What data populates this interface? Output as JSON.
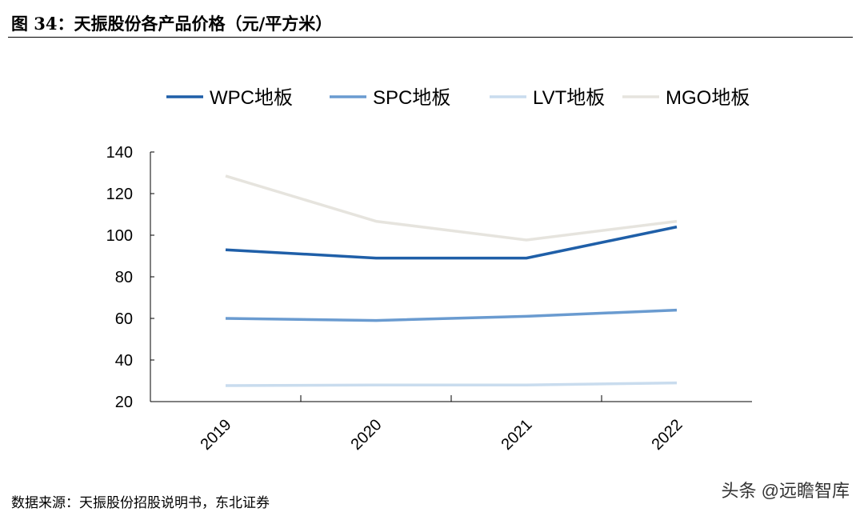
{
  "title": "图 34：天振股份各产品价格（元/平方米）",
  "source": "数据来源：天振股份招股说明书，东北证券",
  "watermark": "头条 @远瞻智库",
  "chart_data": {
    "type": "line",
    "categories": [
      "2019",
      "2020",
      "2021",
      "2022"
    ],
    "ylim": [
      20,
      140
    ],
    "yticks": [
      20,
      40,
      60,
      80,
      100,
      120,
      140
    ],
    "legend_position": "top",
    "grid": false,
    "series": [
      {
        "name": "WPC地板",
        "color": "#1f5fa8",
        "values": [
          93,
          89,
          89,
          104
        ]
      },
      {
        "name": "SPC地板",
        "color": "#6a9bd0",
        "values": [
          60,
          59,
          61,
          64
        ]
      },
      {
        "name": "LVT地板",
        "color": "#c9dcee",
        "values": [
          27.7,
          28,
          28,
          29
        ]
      },
      {
        "name": "MGO地板",
        "color": "#e6e4de",
        "values": [
          128.5,
          106.7,
          97.7,
          106.7
        ]
      }
    ]
  }
}
